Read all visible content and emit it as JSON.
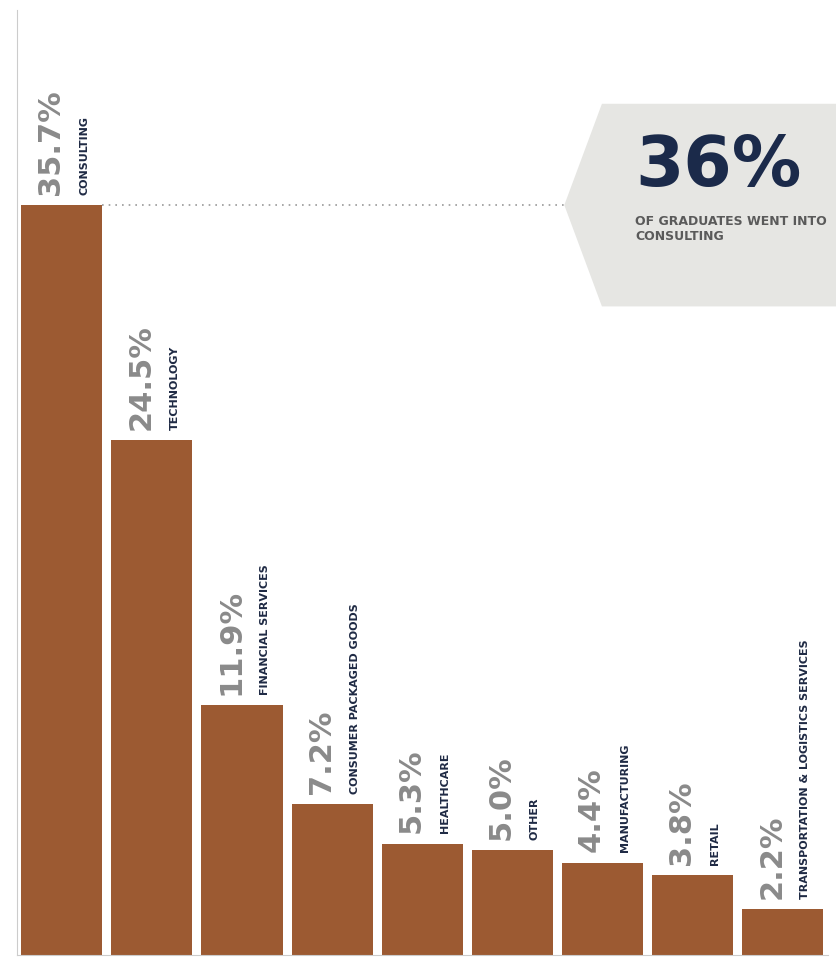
{
  "chart_data": {
    "type": "bar",
    "categories": [
      "CONSULTING",
      "TECHNOLOGY",
      "FINANCIAL SERVICES",
      "CONSUMER PACKAGED GOODS",
      "HEALTHCARE",
      "OTHER",
      "MANUFACTURING",
      "RETAIL",
      "TRANSPORTATION & LOGISTICS SERVICES"
    ],
    "values": [
      35.7,
      24.5,
      11.9,
      7.2,
      5.3,
      5.0,
      4.4,
      3.8,
      2.2
    ],
    "value_labels": [
      "35.7%",
      "24.5%",
      "11.9%",
      "7.2%",
      "5.3%",
      "5.0%",
      "4.4%",
      "3.8%",
      "2.2%"
    ],
    "color": "#9c5a32",
    "ylim": [
      0,
      45
    ],
    "data_labels": true,
    "tick_labels": false,
    "annotations": [
      "36%",
      "OF GRADUATES WENT INTO CONSULTING"
    ]
  }
}
